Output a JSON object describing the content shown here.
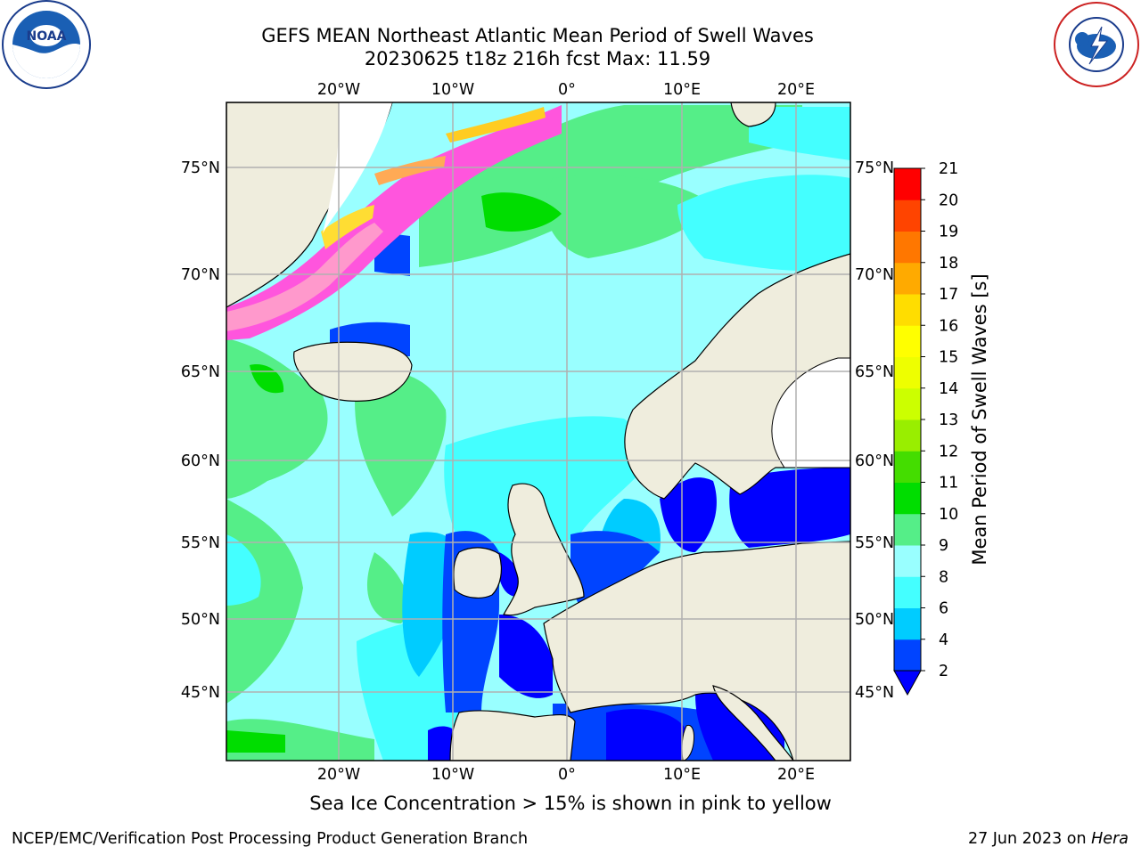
{
  "header": {
    "title_line1": "GEFS MEAN Northeast Atlantic Mean Period of Swell Waves",
    "title_line2": "20230625 t18z 216h fcst   Max: 11.59"
  },
  "logos": {
    "left": {
      "icon": "noaa-logo",
      "text": "NOAA"
    },
    "right": {
      "icon": "national-weather-service-logo",
      "text": "NATIONAL WEATHER SERVICE"
    }
  },
  "map": {
    "lon_labels": [
      "20°W",
      "10°W",
      "0°",
      "10°E",
      "20°E"
    ],
    "lat_labels": [
      "75°N",
      "70°N",
      "65°N",
      "60°N",
      "55°N",
      "50°N",
      "45°N"
    ],
    "colors": {
      "land": "#efeddd",
      "grid": "#b0b0b0",
      "coast": "#000000"
    }
  },
  "colorbar": {
    "label": "Mean Period of Swell Waves [s]",
    "ticks": [
      "2",
      "4",
      "6",
      "8",
      "9",
      "10",
      "11",
      "12",
      "13",
      "14",
      "15",
      "16",
      "17",
      "18",
      "19",
      "20",
      "21"
    ],
    "colors": [
      "#0044ff",
      "#00ccff",
      "#44ffff",
      "#99ffff",
      "#55ee88",
      "#00dd00",
      "#44dd00",
      "#99ee00",
      "#ccff00",
      "#eeff00",
      "#ffff00",
      "#ffdd00",
      "#ffaa00",
      "#ff7700",
      "#ff4400",
      "#ff0000"
    ],
    "under_color": "#0000ff"
  },
  "footer": {
    "note": "Sea Ice Concentration > 15% is shown in pink to yellow",
    "credit": "NCEP/EMC/Verification Post Processing Product Generation Branch",
    "date_prefix": "27 Jun 2023 on ",
    "date_machine": "Hera"
  }
}
